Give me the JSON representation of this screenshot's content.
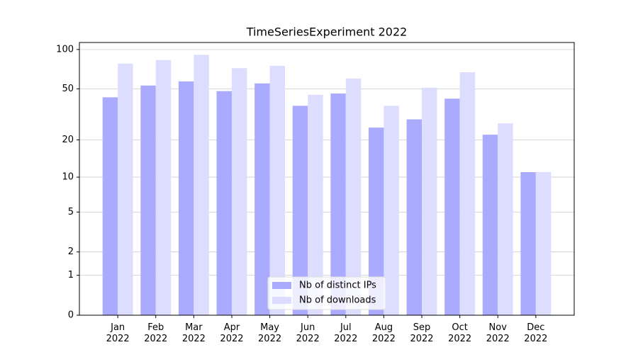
{
  "chart_data": {
    "type": "bar",
    "title": "TimeSeriesExperiment 2022",
    "categories": [
      "Jan\n2022",
      "Feb\n2022",
      "Mar\n2022",
      "Apr\n2022",
      "May\n2022",
      "Jun\n2022",
      "Jul\n2022",
      "Aug\n2022",
      "Sep\n2022",
      "Oct\n2022",
      "Nov\n2022",
      "Dec\n2022"
    ],
    "series": [
      {
        "name": "Nb of distinct IPs",
        "color": "#aaaaff",
        "values": [
          43,
          53,
          57,
          48,
          55,
          37,
          46,
          25,
          29,
          42,
          22,
          11
        ]
      },
      {
        "name": "Nb of downloads",
        "color": "#ddddff",
        "values": [
          78,
          83,
          91,
          72,
          75,
          45,
          60,
          37,
          51,
          67,
          27,
          11
        ]
      }
    ],
    "yscale": "log1p",
    "ylim": [
      0,
      113
    ],
    "yticks": [
      0,
      1,
      2,
      5,
      10,
      20,
      50,
      100
    ],
    "grid": true,
    "legend": "lower center"
  }
}
